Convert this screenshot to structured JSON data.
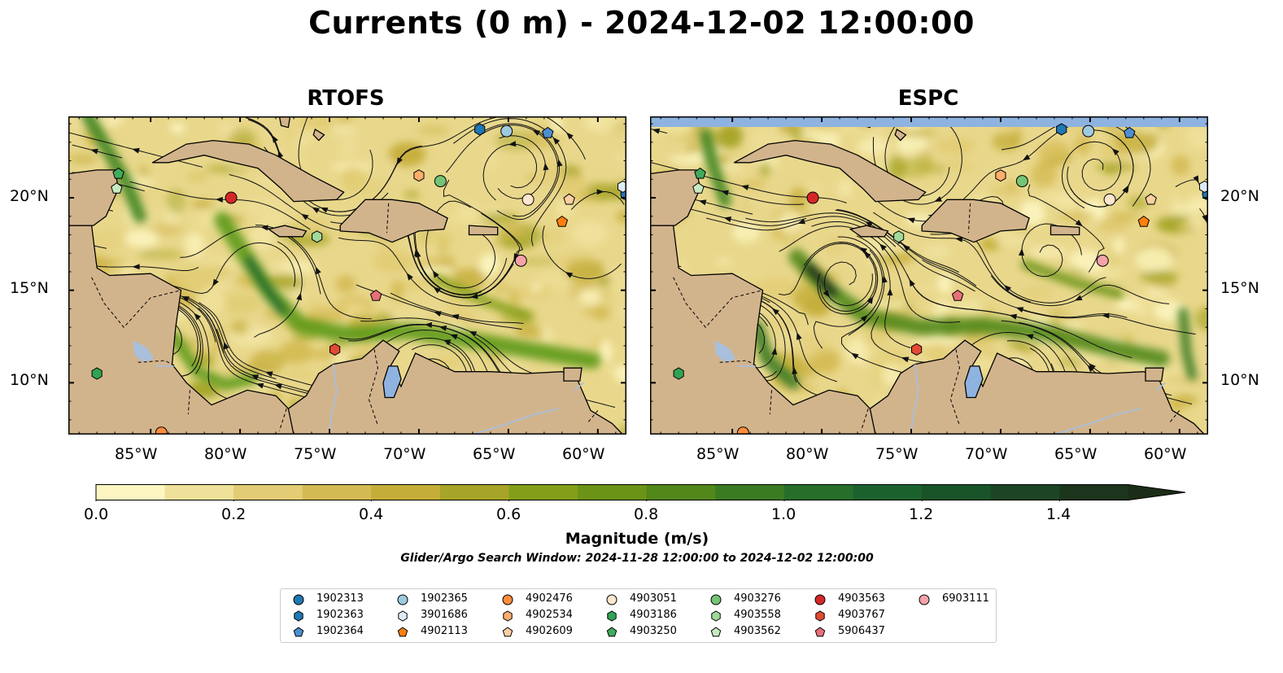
{
  "title": "Currents (0 m) - 2024-12-02 12:00:00",
  "panels": [
    {
      "title": "RTOFS"
    },
    {
      "title": "ESPC"
    }
  ],
  "map": {
    "x_ticks": [
      "85°W",
      "80°W",
      "75°W",
      "70°W",
      "65°W",
      "60°W"
    ],
    "y_ticks": [
      "20°N",
      "15°N",
      "10°N"
    ],
    "lon_range": [
      -89.6,
      -58.4
    ],
    "lat_range": [
      7.2,
      24.4
    ],
    "colors": {
      "land": "#d2b48c",
      "water_body": "#8fb3e0",
      "river": "#a9bfdc",
      "espc_nodata_band": "#8fb3e0"
    }
  },
  "colorbar": {
    "label": "Magnitude (m/s)",
    "ticks": [
      "0.0",
      "0.2",
      "0.4",
      "0.6",
      "0.8",
      "1.0",
      "1.2",
      "1.4"
    ],
    "range": [
      0.0,
      1.5
    ],
    "extend": "max",
    "colors": [
      "#fdf6c2",
      "#efe09a",
      "#e2cc74",
      "#d4ba52",
      "#c4ad38",
      "#a7a527",
      "#849e18",
      "#6b9315",
      "#528719",
      "#3a7b22",
      "#266e2a",
      "#1a612e",
      "#195429",
      "#1b4524",
      "#1c341c"
    ]
  },
  "subtitle": "Glider/Argo Search Window: 2024-11-28 12:00:00 to 2024-12-02 12:00:00",
  "legend": [
    {
      "id": "1902313",
      "marker": "circle",
      "color": "#1f77b4"
    },
    {
      "id": "1902363",
      "marker": "hexagon",
      "color": "#1f77b4"
    },
    {
      "id": "1902364",
      "marker": "pentagon",
      "color": "#4c8fd1"
    },
    {
      "id": "1902365",
      "marker": "circle",
      "color": "#9ecae1"
    },
    {
      "id": "3901686",
      "marker": "hexagon",
      "color": "#deebf7"
    },
    {
      "id": "4902113",
      "marker": "pentagon",
      "color": "#ff7f0e"
    },
    {
      "id": "4902476",
      "marker": "circle",
      "color": "#fd8d3c"
    },
    {
      "id": "4902534",
      "marker": "hexagon",
      "color": "#fdae6b"
    },
    {
      "id": "4902609",
      "marker": "pentagon",
      "color": "#fdd0a2"
    },
    {
      "id": "4903051",
      "marker": "circle",
      "color": "#fee6ce"
    },
    {
      "id": "4903186",
      "marker": "hexagon",
      "color": "#31a354"
    },
    {
      "id": "4903250",
      "marker": "pentagon",
      "color": "#41ab5d"
    },
    {
      "id": "4903276",
      "marker": "circle",
      "color": "#74c476"
    },
    {
      "id": "4903558",
      "marker": "hexagon",
      "color": "#a1d99b"
    },
    {
      "id": "4903562",
      "marker": "pentagon",
      "color": "#c7e9c0"
    },
    {
      "id": "4903563",
      "marker": "circle",
      "color": "#d62728"
    },
    {
      "id": "4903767",
      "marker": "hexagon",
      "color": "#e34a33"
    },
    {
      "id": "5906437",
      "marker": "pentagon",
      "color": "#e8707a"
    },
    {
      "id": "6903111",
      "marker": "circle",
      "color": "#f4a3a8"
    }
  ],
  "floats": [
    {
      "id": "1902313",
      "lon": -58.4,
      "lat": 20.2
    },
    {
      "id": "1902363",
      "lon": -66.6,
      "lat": 23.7
    },
    {
      "id": "1902364",
      "lon": -62.8,
      "lat": 23.5
    },
    {
      "id": "1902365",
      "lon": -65.1,
      "lat": 23.6
    },
    {
      "id": "3901686",
      "lon": -58.6,
      "lat": 20.6
    },
    {
      "id": "4902113",
      "lon": -62.0,
      "lat": 18.7
    },
    {
      "id": "4902476",
      "lon": -84.4,
      "lat": 7.3
    },
    {
      "id": "4902534",
      "lon": -70.0,
      "lat": 21.2
    },
    {
      "id": "4902609",
      "lon": -61.6,
      "lat": 19.9
    },
    {
      "id": "4903051",
      "lon": -63.9,
      "lat": 19.9
    },
    {
      "id": "4903250",
      "lon": -86.8,
      "lat": 21.3
    },
    {
      "id": "4903276",
      "lon": -68.8,
      "lat": 20.9
    },
    {
      "id": "4903558",
      "lon": -75.7,
      "lat": 17.9
    },
    {
      "id": "4903562",
      "lon": -86.9,
      "lat": 20.5
    },
    {
      "id": "4903563",
      "lon": -80.5,
      "lat": 20.0
    },
    {
      "id": "4903767",
      "lon": -74.7,
      "lat": 11.8
    },
    {
      "id": "4903186",
      "lon": -88.0,
      "lat": 10.5
    },
    {
      "id": "5906437",
      "lon": -72.4,
      "lat": 14.7
    },
    {
      "id": "6903111",
      "lon": -64.3,
      "lat": 16.6
    }
  ]
}
